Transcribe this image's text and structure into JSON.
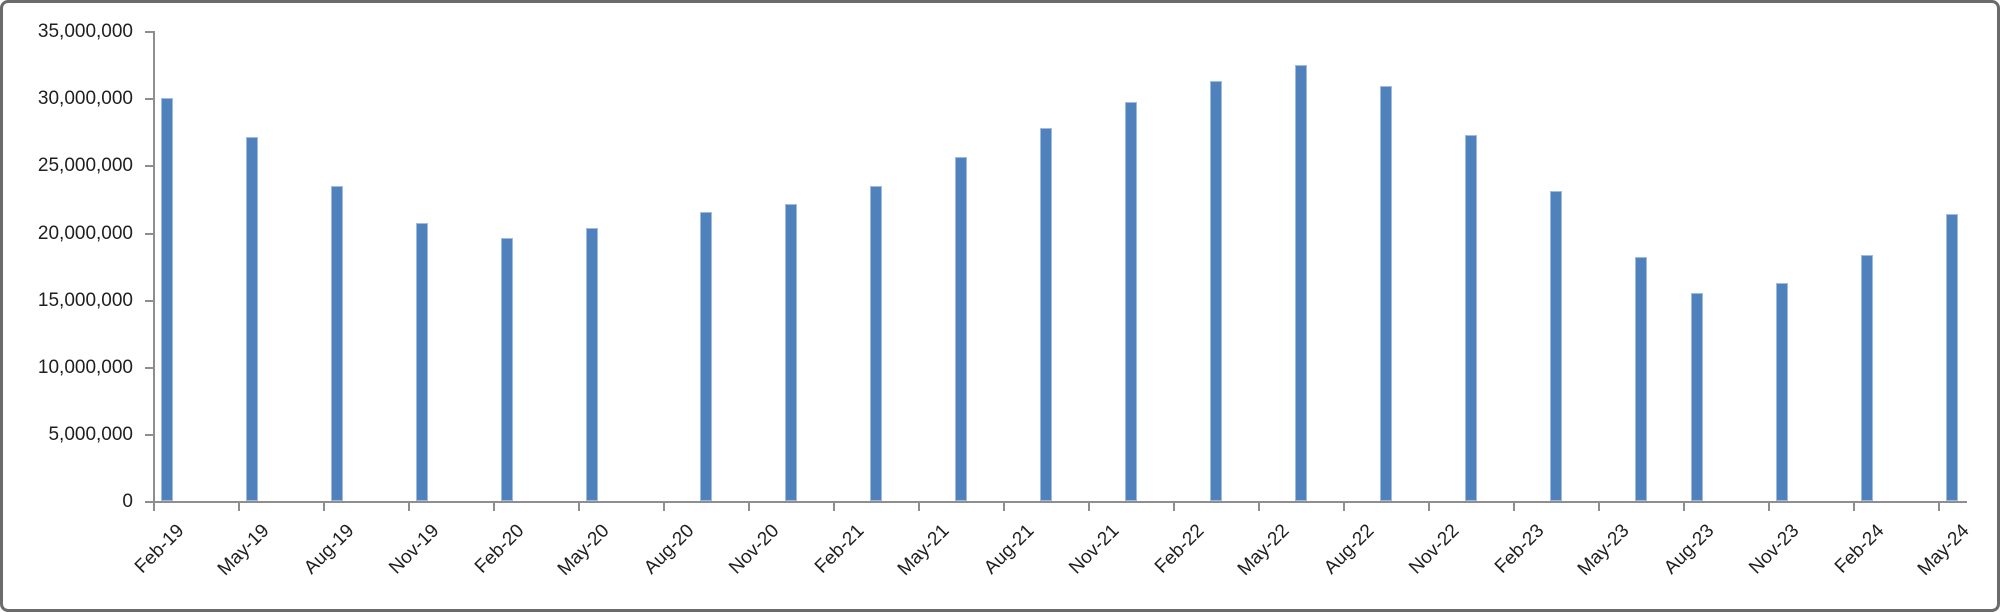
{
  "chart_data": {
    "type": "bar",
    "title": "",
    "legend": "none",
    "gridlines": "none",
    "y_axis": {
      "ylim": [
        0,
        35000000
      ],
      "major_unit": 5000000,
      "tick_labels": [
        "0",
        "5,000,000",
        "10,000,000",
        "15,000,000",
        "20,000,000",
        "25,000,000",
        "30,000,000",
        "35,000,000"
      ],
      "tick_values": [
        0,
        5000000,
        10000000,
        15000000,
        20000000,
        25000000,
        30000000,
        35000000
      ]
    },
    "x_axis": {
      "tick_labels": [
        "Feb-19",
        "May-19",
        "Aug-19",
        "Nov-19",
        "Feb-20",
        "May-20",
        "Aug-20",
        "Nov-20",
        "Feb-21",
        "May-21",
        "Aug-21",
        "Nov-21",
        "Feb-22",
        "May-22",
        "Aug-22",
        "Nov-22",
        "Feb-23",
        "May-23",
        "Aug-23",
        "Nov-23",
        "Feb-24",
        "May-24"
      ],
      "tick_month_offsets": [
        0,
        3,
        6,
        9,
        12,
        15,
        18,
        21,
        24,
        27,
        30,
        33,
        36,
        39,
        42,
        45,
        48,
        51,
        54,
        57,
        60,
        63
      ],
      "axis_month_span": [
        0,
        64
      ],
      "label_rotation_deg": 45
    },
    "bars": [
      {
        "month_offset": 0,
        "value": 30000000
      },
      {
        "month_offset": 3,
        "value": 27100000
      },
      {
        "month_offset": 6,
        "value": 23500000
      },
      {
        "month_offset": 9,
        "value": 20700000
      },
      {
        "month_offset": 12,
        "value": 19600000
      },
      {
        "month_offset": 15,
        "value": 20300000
      },
      {
        "month_offset": 19,
        "value": 21500000
      },
      {
        "month_offset": 22,
        "value": 22100000
      },
      {
        "month_offset": 25,
        "value": 23500000
      },
      {
        "month_offset": 28,
        "value": 25600000
      },
      {
        "month_offset": 31,
        "value": 27800000
      },
      {
        "month_offset": 34,
        "value": 29700000
      },
      {
        "month_offset": 37,
        "value": 31300000
      },
      {
        "month_offset": 40,
        "value": 32500000
      },
      {
        "month_offset": 43,
        "value": 30900000
      },
      {
        "month_offset": 46,
        "value": 27300000
      },
      {
        "month_offset": 49,
        "value": 23100000
      },
      {
        "month_offset": 52,
        "value": 18200000
      },
      {
        "month_offset": 54,
        "value": 15500000
      },
      {
        "month_offset": 57,
        "value": 16200000
      },
      {
        "month_offset": 60,
        "value": 18300000
      },
      {
        "month_offset": 63,
        "value": 21400000
      }
    ],
    "colors": {
      "bar_fill": "#4f81bd",
      "bar_border": "#9fbbdd",
      "axis_line": "#8e8e8e",
      "text": "#1f1f1f",
      "frame_border": "#6b6b6b",
      "background": "#ffffff"
    }
  }
}
